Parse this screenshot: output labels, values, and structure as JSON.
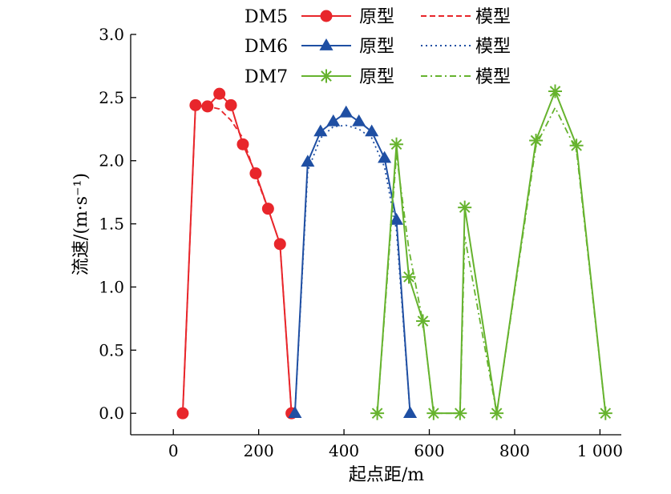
{
  "chart_data": {
    "type": "line",
    "xlabel": "起点距/m",
    "ylabel": "流速/(m·s⁻¹)",
    "xlim": [
      -100,
      1050
    ],
    "ylim": [
      -0.17,
      3.0
    ],
    "xticks": [
      0,
      200,
      400,
      600,
      800,
      1000
    ],
    "xtick_labels": [
      "0",
      "200",
      "400",
      "600",
      "800",
      "1 000"
    ],
    "yticks": [
      0.0,
      0.5,
      1.0,
      1.5,
      2.0,
      2.5,
      3.0
    ],
    "ytick_labels": [
      "0.0",
      "0.5",
      "1.0",
      "1.5",
      "2.0",
      "2.5",
      "3.0"
    ],
    "grid": false,
    "legend_position": "top",
    "legend": {
      "proto_label": "原型",
      "model_label": "模型"
    },
    "groups": [
      {
        "name": "DM5",
        "color": "#e8262b",
        "marker": "circle",
        "model_dash": "dashed",
        "prototype": {
          "x": [
            22,
            52,
            80,
            108,
            135,
            163,
            193,
            222,
            250,
            277
          ],
          "y": [
            0.0,
            2.44,
            2.43,
            2.53,
            2.44,
            2.13,
            1.9,
            1.62,
            1.34,
            0.0
          ]
        },
        "model": {
          "x": [
            22,
            52,
            80,
            108,
            135,
            163,
            193,
            222,
            250,
            277
          ],
          "y": [
            0.0,
            2.43,
            2.43,
            2.41,
            2.32,
            2.18,
            1.88,
            1.62,
            1.34,
            0.0
          ]
        }
      },
      {
        "name": "DM6",
        "color": "#1f4fa3",
        "marker": "triangle",
        "model_dash": "dotted",
        "prototype": {
          "x": [
            285,
            315,
            345,
            375,
            405,
            435,
            465,
            495,
            523,
            555
          ],
          "y": [
            0.0,
            1.99,
            2.23,
            2.31,
            2.38,
            2.31,
            2.23,
            2.02,
            1.53,
            0.0
          ]
        },
        "model": {
          "x": [
            285,
            315,
            345,
            375,
            405,
            435,
            465,
            495,
            523,
            555
          ],
          "y": [
            0.0,
            1.92,
            2.18,
            2.27,
            2.28,
            2.25,
            2.18,
            1.95,
            1.45,
            0.0
          ]
        }
      },
      {
        "name": "DM7",
        "color": "#66b32e",
        "marker": "asterisk",
        "model_dash": "dashdot",
        "prototype": {
          "x": [
            478,
            523,
            552,
            585,
            610,
            672,
            683,
            758,
            850,
            895,
            945,
            1013
          ],
          "y": [
            0.0,
            2.13,
            1.08,
            0.73,
            0.0,
            0.0,
            1.63,
            0.0,
            2.16,
            2.55,
            2.12,
            0.0
          ]
        },
        "model": {
          "x": [
            478,
            523,
            552,
            585,
            610,
            672,
            683,
            758,
            850,
            895,
            945,
            1013
          ],
          "y": [
            0.0,
            2.05,
            1.3,
            0.72,
            0.0,
            0.0,
            1.4,
            0.0,
            2.12,
            2.42,
            2.08,
            0.0
          ]
        }
      }
    ]
  }
}
